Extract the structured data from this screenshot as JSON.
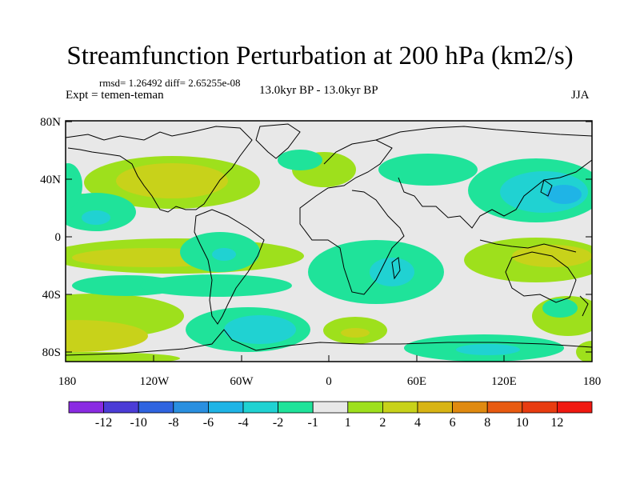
{
  "title": "Streamfunction Perturbation at 200 hPa (km2/s)",
  "stats": "rmsd= 1.26492 diff= 2.65255e-08",
  "experiment": "Expt = temen-teman",
  "period": "13.0kyr BP - 13.0kyr BP",
  "season": "JJA",
  "lat_ticks": [
    "80N",
    "40N",
    "0",
    "40S",
    "80S"
  ],
  "lon_ticks": [
    "180",
    "120W",
    "60W",
    "0",
    "60E",
    "120E",
    "180"
  ],
  "colorbar": {
    "labels": [
      "-12",
      "-10",
      "-8",
      "-6",
      "-4",
      "-2",
      "-1",
      "1",
      "2",
      "4",
      "6",
      "8",
      "10",
      "12"
    ],
    "colors": [
      "#8a2be2",
      "#4b3cd6",
      "#2f64e0",
      "#2a8fe0",
      "#1fb4e6",
      "#20d2d2",
      "#1fe39a",
      "#e8e8e8",
      "#9ee01c",
      "#c8d21a",
      "#d8b414",
      "#e08a10",
      "#e85a10",
      "#e83c10",
      "#f01810"
    ]
  }
}
